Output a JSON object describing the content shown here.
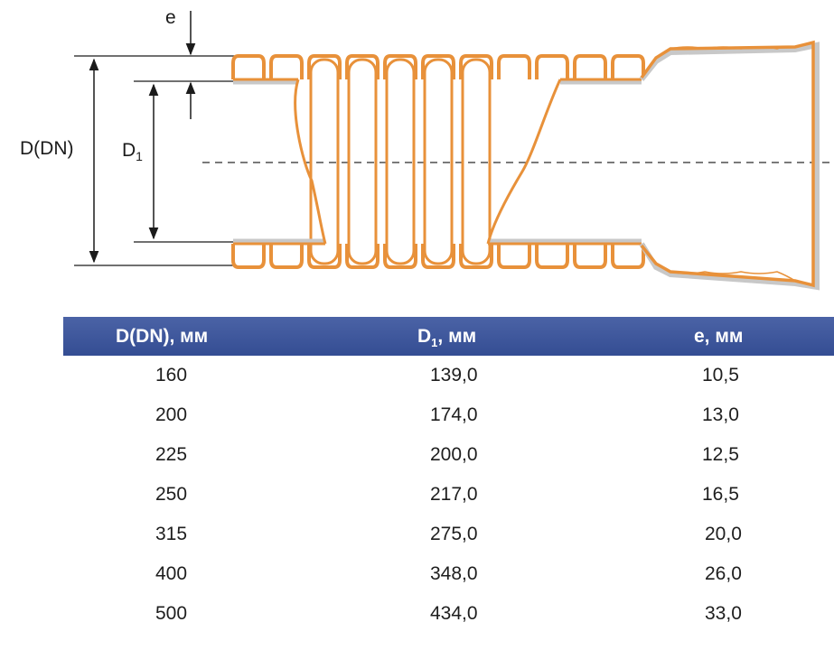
{
  "drawing": {
    "labels": {
      "e": "e",
      "d_dn": "D(DN)",
      "d1_main": "D",
      "d1_sub": "1"
    },
    "colors": {
      "pipe_orange": "#e8913a",
      "pipe_shadow": "#c8c8c8",
      "dim_line": "#1b1b1b",
      "header_blue": "#3a5399"
    }
  },
  "table": {
    "headers": {
      "d_dn": "D(DN), мм",
      "d1_main": "D",
      "d1_sub": "1",
      "d1_unit": ", мм",
      "e": "e, мм"
    },
    "rows": [
      {
        "d_dn": "160",
        "d1": "139,0",
        "e": "10,5"
      },
      {
        "d_dn": "200",
        "d1": "174,0",
        "e": "13,0"
      },
      {
        "d_dn": "225",
        "d1": "200,0",
        "e": "12,5"
      },
      {
        "d_dn": "250",
        "d1": "217,0",
        "e": "16,5"
      },
      {
        "d_dn": "315",
        "d1": "275,0",
        "e": "20,0"
      },
      {
        "d_dn": "400",
        "d1": "348,0",
        "e": "26,0"
      },
      {
        "d_dn": "500",
        "d1": "434,0",
        "e": "33,0"
      }
    ]
  }
}
